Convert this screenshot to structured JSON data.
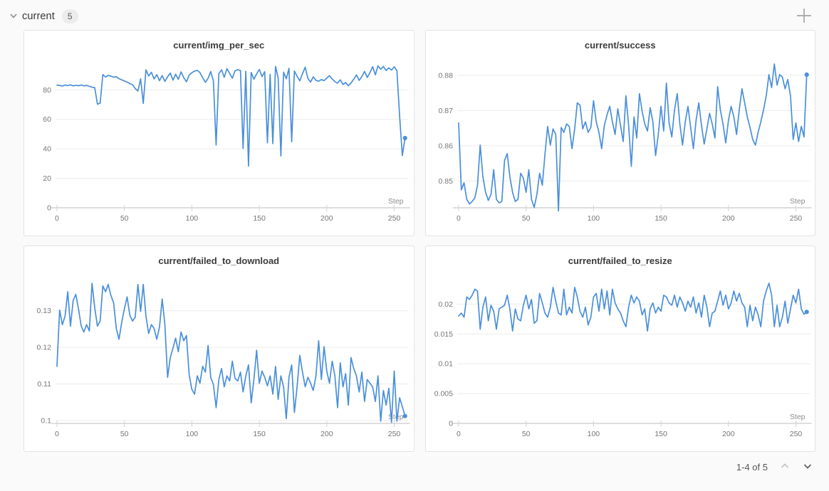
{
  "header": {
    "section_label": "current",
    "count_badge": "5",
    "collapse_icon": "chevron-down-icon",
    "add_icon": "plus-icon"
  },
  "pagination": {
    "label": "1-4 of 5",
    "prev_icon": "chevron-up-icon",
    "next_icon": "chevron-down-icon",
    "prev_enabled": false,
    "next_enabled": true
  },
  "colors": {
    "line": "#4a8fdb",
    "grid": "#ebebeb",
    "axis": "#c9c9c9",
    "tick_mark": "#d4d4d4",
    "tick_text": "#767676",
    "title_text": "#3b3b3b",
    "card_border": "#e2e2e2",
    "card_bg": "#ffffff",
    "page_bg": "#fafafa"
  },
  "chart_data": [
    {
      "type": "line",
      "title": "current/img_per_sec",
      "xlabel": "Step",
      "ylabel": "",
      "xlim": [
        0,
        260
      ],
      "x_step": 2,
      "xticks": [
        0,
        50,
        100,
        150,
        200,
        250
      ],
      "ylim": [
        0,
        97.5
      ],
      "ytick_values": [
        0,
        20,
        40,
        60,
        80
      ],
      "ytick_labels": [
        "0",
        "20",
        "40",
        "60",
        "80"
      ],
      "grid": true,
      "legend": "none",
      "end_dot": true,
      "values": [
        83.2,
        83.0,
        82.6,
        83.3,
        82.9,
        83.4,
        82.7,
        83.1,
        82.8,
        83.3,
        82.7,
        83.0,
        82.4,
        81.8,
        81.5,
        70.3,
        71.0,
        90.4,
        88.7,
        89.8,
        89.3,
        88.6,
        88.9,
        87.6,
        86.8,
        86.0,
        85.2,
        84.3,
        83.5,
        80.9,
        79.2,
        87.5,
        70.8,
        93.6,
        89.4,
        91.9,
        87.4,
        90.3,
        86.2,
        89.7,
        85.7,
        88.9,
        91.3,
        86.6,
        90.6,
        87.1,
        92.2,
        88.3,
        85.5,
        90.0,
        91.6,
        92.7,
        93.2,
        91.7,
        88.2,
        85.1,
        87.8,
        92.4,
        86.0,
        42.5,
        90.9,
        93.6,
        88.5,
        94.3,
        91.2,
        87.9,
        92.9,
        93.7,
        93.1,
        40.2,
        92.6,
        28.3,
        91.8,
        87.2,
        90.8,
        93.9,
        89.0,
        92.3,
        44.1,
        90.5,
        43.5,
        95.9,
        88.1,
        35.2,
        92.0,
        87.5,
        94.6,
        44.8,
        92.8,
        89.2,
        86.1,
        91.0,
        95.4,
        87.7,
        85.3,
        88.8,
        86.5,
        85.8,
        87.0,
        86.3,
        88.0,
        89.6,
        87.4,
        85.6,
        84.5,
        86.8,
        83.6,
        85.0,
        82.8,
        84.7,
        87.2,
        90.1,
        86.4,
        89.0,
        92.5,
        88.4,
        91.7,
        95.7,
        90.2,
        96.3,
        94.0,
        95.8,
        93.1,
        94.9,
        93.4,
        95.6,
        93.0,
        62.0,
        35.4,
        47.3
      ]
    },
    {
      "type": "line",
      "title": "current/success",
      "xlabel": "Step",
      "ylabel": "",
      "xlim": [
        0,
        260
      ],
      "x_step": 2,
      "xticks": [
        0,
        50,
        100,
        150,
        200,
        250
      ],
      "ylim": [
        0.8424,
        0.8832
      ],
      "ytick_values": [
        0.85,
        0.86,
        0.87,
        0.88
      ],
      "ytick_labels": [
        "0.85",
        "0.86",
        "0.87",
        "0.88"
      ],
      "grid": true,
      "legend": "none",
      "end_dot": true,
      "values": [
        0.8665,
        0.8475,
        0.8495,
        0.8448,
        0.8435,
        0.8442,
        0.8452,
        0.8488,
        0.8602,
        0.8512,
        0.8468,
        0.8445,
        0.8462,
        0.8532,
        0.8448,
        0.8438,
        0.8442,
        0.8558,
        0.8578,
        0.8512,
        0.8468,
        0.8442,
        0.8448,
        0.8522,
        0.8508,
        0.8468,
        0.8532,
        0.8448,
        0.8425,
        0.8462,
        0.8522,
        0.8488,
        0.8575,
        0.8655,
        0.8602,
        0.8648,
        0.8632,
        0.8415,
        0.8652,
        0.8638,
        0.8662,
        0.8655,
        0.8592,
        0.8648,
        0.8722,
        0.8715,
        0.8648,
        0.8668,
        0.8638,
        0.8652,
        0.8728,
        0.8668,
        0.8638,
        0.8592,
        0.8658,
        0.8688,
        0.8712,
        0.8668,
        0.8632,
        0.8705,
        0.8658,
        0.8612,
        0.8742,
        0.8658,
        0.8542,
        0.8682,
        0.8622,
        0.8748,
        0.8698,
        0.8662,
        0.8642,
        0.8708,
        0.8668,
        0.8572,
        0.8632,
        0.8712,
        0.8642,
        0.8778,
        0.8665,
        0.8625,
        0.8702,
        0.8748,
        0.8662,
        0.8602,
        0.8668,
        0.8712,
        0.8652,
        0.8592,
        0.8672,
        0.8722,
        0.8658,
        0.8605,
        0.8648,
        0.8692,
        0.8662,
        0.8622,
        0.8768,
        0.8702,
        0.8662,
        0.8608,
        0.8672,
        0.8712,
        0.8682,
        0.8632,
        0.8702,
        0.8762,
        0.8722,
        0.8682,
        0.8652,
        0.8618,
        0.8602,
        0.8638,
        0.8668,
        0.8702,
        0.8742,
        0.8802,
        0.8765,
        0.8832,
        0.8772,
        0.8802,
        0.8795,
        0.8762,
        0.8788,
        0.8742,
        0.8618,
        0.8665,
        0.8612,
        0.8655,
        0.8625,
        0.8802
      ]
    },
    {
      "type": "line",
      "title": "current/failed_to_download",
      "xlabel": "Step",
      "ylabel": "",
      "xlim": [
        0,
        260
      ],
      "x_step": 2,
      "xticks": [
        0,
        50,
        100,
        150,
        200,
        250
      ],
      "ylim": [
        0.0992,
        0.1385
      ],
      "ytick_values": [
        0.1,
        0.11,
        0.12,
        0.13
      ],
      "ytick_labels": [
        "0.1",
        "0.11",
        "0.12",
        "0.13"
      ],
      "grid": true,
      "legend": "none",
      "end_dot": true,
      "values": [
        0.1148,
        0.1302,
        0.1262,
        0.1285,
        0.1352,
        0.1258,
        0.1328,
        0.1345,
        0.1305,
        0.1258,
        0.1242,
        0.1262,
        0.1245,
        0.1375,
        0.1308,
        0.1258,
        0.1272,
        0.1368,
        0.1352,
        0.1372,
        0.1342,
        0.1322,
        0.1252,
        0.1222,
        0.1268,
        0.1305,
        0.1338,
        0.1288,
        0.1272,
        0.1282,
        0.1372,
        0.1298,
        0.1372,
        0.1285,
        0.1238,
        0.1262,
        0.1252,
        0.1222,
        0.1255,
        0.1332,
        0.1262,
        0.1118,
        0.1172,
        0.1198,
        0.1225,
        0.1188,
        0.1242,
        0.1218,
        0.1232,
        0.1125,
        0.1085,
        0.1072,
        0.1122,
        0.1102,
        0.1148,
        0.1132,
        0.1205,
        0.1118,
        0.1098,
        0.1035,
        0.1112,
        0.1142,
        0.1092,
        0.1122,
        0.1108,
        0.1162,
        0.1115,
        0.1108,
        0.1132,
        0.1078,
        0.1122,
        0.1152,
        0.1048,
        0.1112,
        0.1192,
        0.1102,
        0.1135,
        0.1118,
        0.1095,
        0.1122,
        0.1072,
        0.1148,
        0.1058,
        0.1122,
        0.1092,
        0.1005,
        0.1118,
        0.1152,
        0.1022,
        0.1092,
        0.1178,
        0.1132,
        0.1092,
        0.1118,
        0.1102,
        0.1082,
        0.1122,
        0.1218,
        0.1112,
        0.1202,
        0.1135,
        0.1102,
        0.1162,
        0.1122,
        0.1035,
        0.1158,
        0.1092,
        0.1128,
        0.1042,
        0.1172,
        0.1142,
        0.1122,
        0.1078,
        0.1132,
        0.1052,
        0.1112,
        0.1102,
        0.1092,
        0.1052,
        0.1122,
        0.0998,
        0.1082,
        0.1042,
        0.1088,
        0.0995,
        0.1135,
        0.0998,
        0.1062,
        0.1038,
        0.1012
      ]
    },
    {
      "type": "line",
      "title": "current/failed_to_resize",
      "xlabel": "Step",
      "ylabel": "",
      "xlim": [
        0,
        260
      ],
      "x_step": 2,
      "xticks": [
        0,
        50,
        100,
        150,
        200,
        250
      ],
      "ylim": [
        0,
        0.0241
      ],
      "ytick_values": [
        0,
        0.005,
        0.01,
        0.015,
        0.02
      ],
      "ytick_labels": [
        "0",
        "0.005",
        "0.01",
        "0.015",
        "0.02"
      ],
      "grid": true,
      "legend": "none",
      "end_dot": true,
      "values": [
        0.018,
        0.0185,
        0.0178,
        0.0212,
        0.0208,
        0.0215,
        0.0225,
        0.0222,
        0.0158,
        0.0195,
        0.0212,
        0.0172,
        0.0198,
        0.0188,
        0.0158,
        0.0192,
        0.0195,
        0.0198,
        0.0215,
        0.0192,
        0.0155,
        0.0192,
        0.0175,
        0.0172,
        0.0198,
        0.0215,
        0.0192,
        0.0208,
        0.0168,
        0.0172,
        0.0218,
        0.0202,
        0.0185,
        0.0178,
        0.0195,
        0.0228,
        0.0205,
        0.0185,
        0.0182,
        0.0225,
        0.0182,
        0.0195,
        0.0185,
        0.0228,
        0.0212,
        0.0188,
        0.0178,
        0.0195,
        0.0165,
        0.0178,
        0.0212,
        0.0218,
        0.0188,
        0.0225,
        0.0192,
        0.0222,
        0.0182,
        0.0225,
        0.0202,
        0.0192,
        0.0185,
        0.0172,
        0.0162,
        0.0195,
        0.0215,
        0.0202,
        0.0212,
        0.0205,
        0.0182,
        0.0192,
        0.0155,
        0.0192,
        0.0202,
        0.0185,
        0.0195,
        0.0188,
        0.0215,
        0.0212,
        0.0202,
        0.0198,
        0.0215,
        0.0195,
        0.0212,
        0.0202,
        0.0188,
        0.0205,
        0.0195,
        0.0212,
        0.0185,
        0.0202,
        0.0178,
        0.0215,
        0.0195,
        0.0162,
        0.0185,
        0.0188,
        0.0205,
        0.0222,
        0.0198,
        0.0215,
        0.0192,
        0.0202,
        0.0222,
        0.0205,
        0.0218,
        0.0202,
        0.0195,
        0.0162,
        0.0198,
        0.0172,
        0.0195,
        0.0182,
        0.0162,
        0.0205,
        0.0222,
        0.0235,
        0.0215,
        0.0162,
        0.0198,
        0.0162,
        0.0178,
        0.0205,
        0.0168,
        0.0192,
        0.0215,
        0.0202,
        0.0225,
        0.0192,
        0.0183,
        0.0187
      ]
    }
  ]
}
